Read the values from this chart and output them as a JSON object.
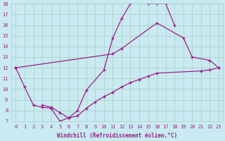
{
  "xlabel": "Windchill (Refroidissement éolien,°C)",
  "bg_color": "#c8eaf0",
  "line_color": "#9b1e8a",
  "line1_x": [
    0,
    1,
    2,
    3,
    4,
    5,
    6,
    7,
    8,
    10,
    11,
    12,
    13,
    14,
    15,
    16,
    17,
    18
  ],
  "line1_y": [
    12,
    10.2,
    8.5,
    8.3,
    8.2,
    7.0,
    7.3,
    8.0,
    9.9,
    11.8,
    14.8,
    16.6,
    18.0,
    18.2,
    18.0,
    18.0,
    18.0,
    16.0
  ],
  "line2_x": [
    0,
    11,
    12,
    16,
    19,
    20,
    22,
    23
  ],
  "line2_y": [
    12,
    13.3,
    13.8,
    16.2,
    14.8,
    13.0,
    12.7,
    12.0
  ],
  "line3_x": [
    3,
    4,
    5,
    6,
    7,
    8,
    9,
    10,
    11,
    12,
    13,
    14,
    15,
    16,
    21,
    22,
    23
  ],
  "line3_y": [
    8.5,
    8.3,
    7.8,
    7.3,
    7.5,
    8.2,
    8.8,
    9.3,
    9.7,
    10.2,
    10.6,
    10.9,
    11.2,
    11.5,
    11.7,
    11.8,
    12.0
  ],
  "xlim": [
    -0.5,
    23.5
  ],
  "ylim": [
    7,
    18
  ],
  "yticks": [
    7,
    8,
    9,
    10,
    11,
    12,
    13,
    14,
    15,
    16,
    17,
    18
  ],
  "xticks": [
    0,
    1,
    2,
    3,
    4,
    5,
    6,
    7,
    8,
    9,
    10,
    11,
    12,
    13,
    14,
    15,
    16,
    17,
    18,
    19,
    20,
    21,
    22,
    23
  ],
  "grid_color": "#aacccc",
  "tick_color": "#9b1e8a",
  "label_color": "#9b1e8a",
  "label_fontsize": 5.5,
  "tick_fontsize": 5.0
}
